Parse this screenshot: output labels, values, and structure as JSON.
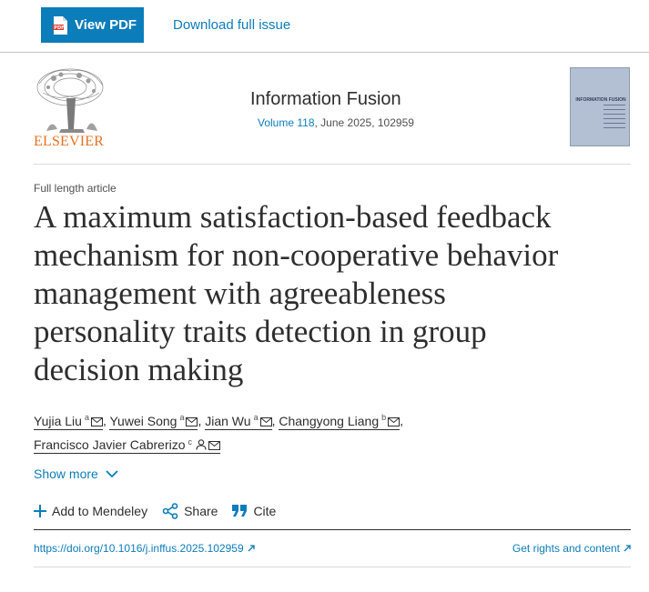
{
  "toolbar": {
    "view_pdf_label": "View PDF",
    "download_label": "Download full issue"
  },
  "publication": {
    "publisher": "ELSEVIER",
    "journal_title": "Information Fusion",
    "volume": "Volume 118",
    "issue_info": ", June 2025, 102959",
    "cover_title": "INFORMATION FUSION"
  },
  "article": {
    "type": "Full length article",
    "title_lines": [
      "A maximum satisfaction-based feedback",
      "mechanism for non-cooperative behavior",
      "management with agreeableness",
      "personality traits detection in group",
      "decision making"
    ]
  },
  "authors": [
    {
      "name": "Yujia Liu",
      "aff": "a"
    },
    {
      "name": "Yuwei Song",
      "aff": "a"
    },
    {
      "name": "Jian Wu",
      "aff": "a"
    },
    {
      "name": "Changyong Liang",
      "aff": "b"
    },
    {
      "name": "Francisco Javier Cabrerizo",
      "aff": "c"
    }
  ],
  "show_more_label": "Show more",
  "actions": {
    "mendeley": "Add to Mendeley",
    "share": "Share",
    "cite": "Cite"
  },
  "doi": "https://doi.org/10.1016/j.inffus.2025.102959",
  "rights_label": "Get rights and content",
  "colors": {
    "accent": "#0c7dbb",
    "elsevier_orange": "#e9711c",
    "text": "#2e2e2e"
  }
}
